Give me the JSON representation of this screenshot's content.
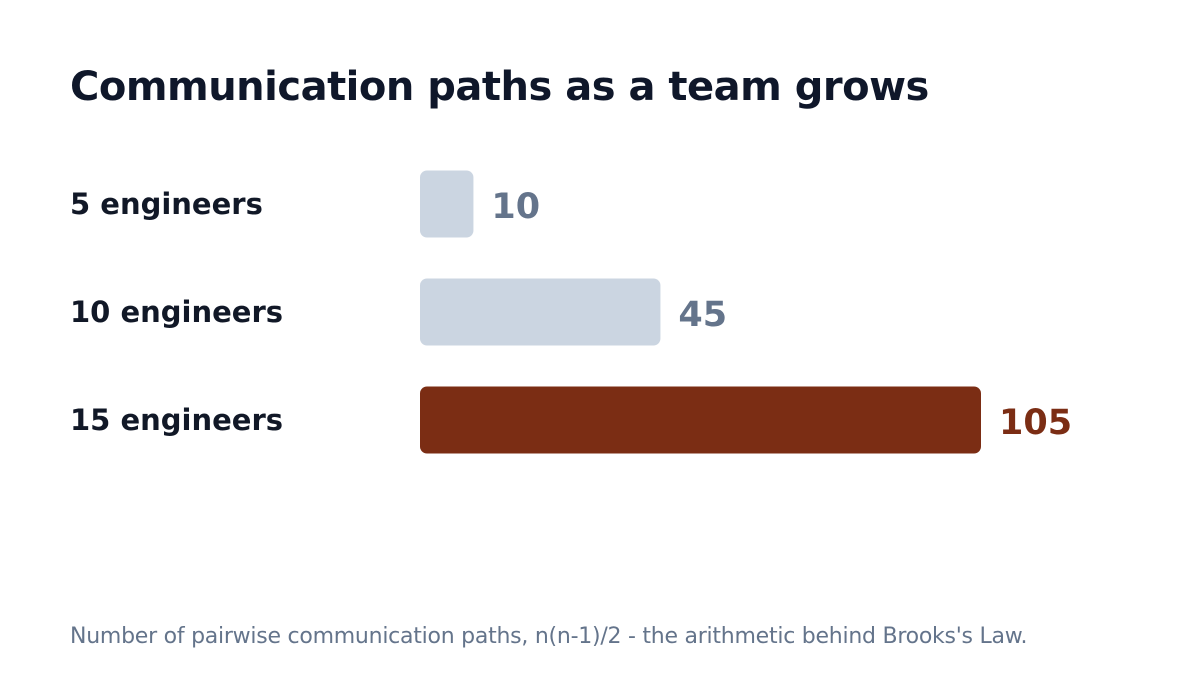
{
  "chart_data": {
    "type": "bar",
    "orientation": "horizontal",
    "title": "Communication paths as a team grows",
    "categories": [
      "5 engineers",
      "10 engineers",
      "15 engineers"
    ],
    "values": [
      10,
      45,
      105
    ],
    "value_labels": [
      "10",
      "45",
      "105"
    ],
    "xlim": [
      0,
      105
    ],
    "grid": false,
    "legend": "none",
    "colors": {
      "default_bar": "#cbd5e1",
      "default_label": "#64748b",
      "highlight_bar": "#7b2d14",
      "highlight_label": "#7b2d14",
      "title": "#0f172a",
      "category_label": "#111827",
      "footnote": "#64748b"
    },
    "highlight_index": 2,
    "footnote": "Number of pairwise communication paths, n(n-1)/2 - the arithmetic behind Brooks's Law."
  }
}
